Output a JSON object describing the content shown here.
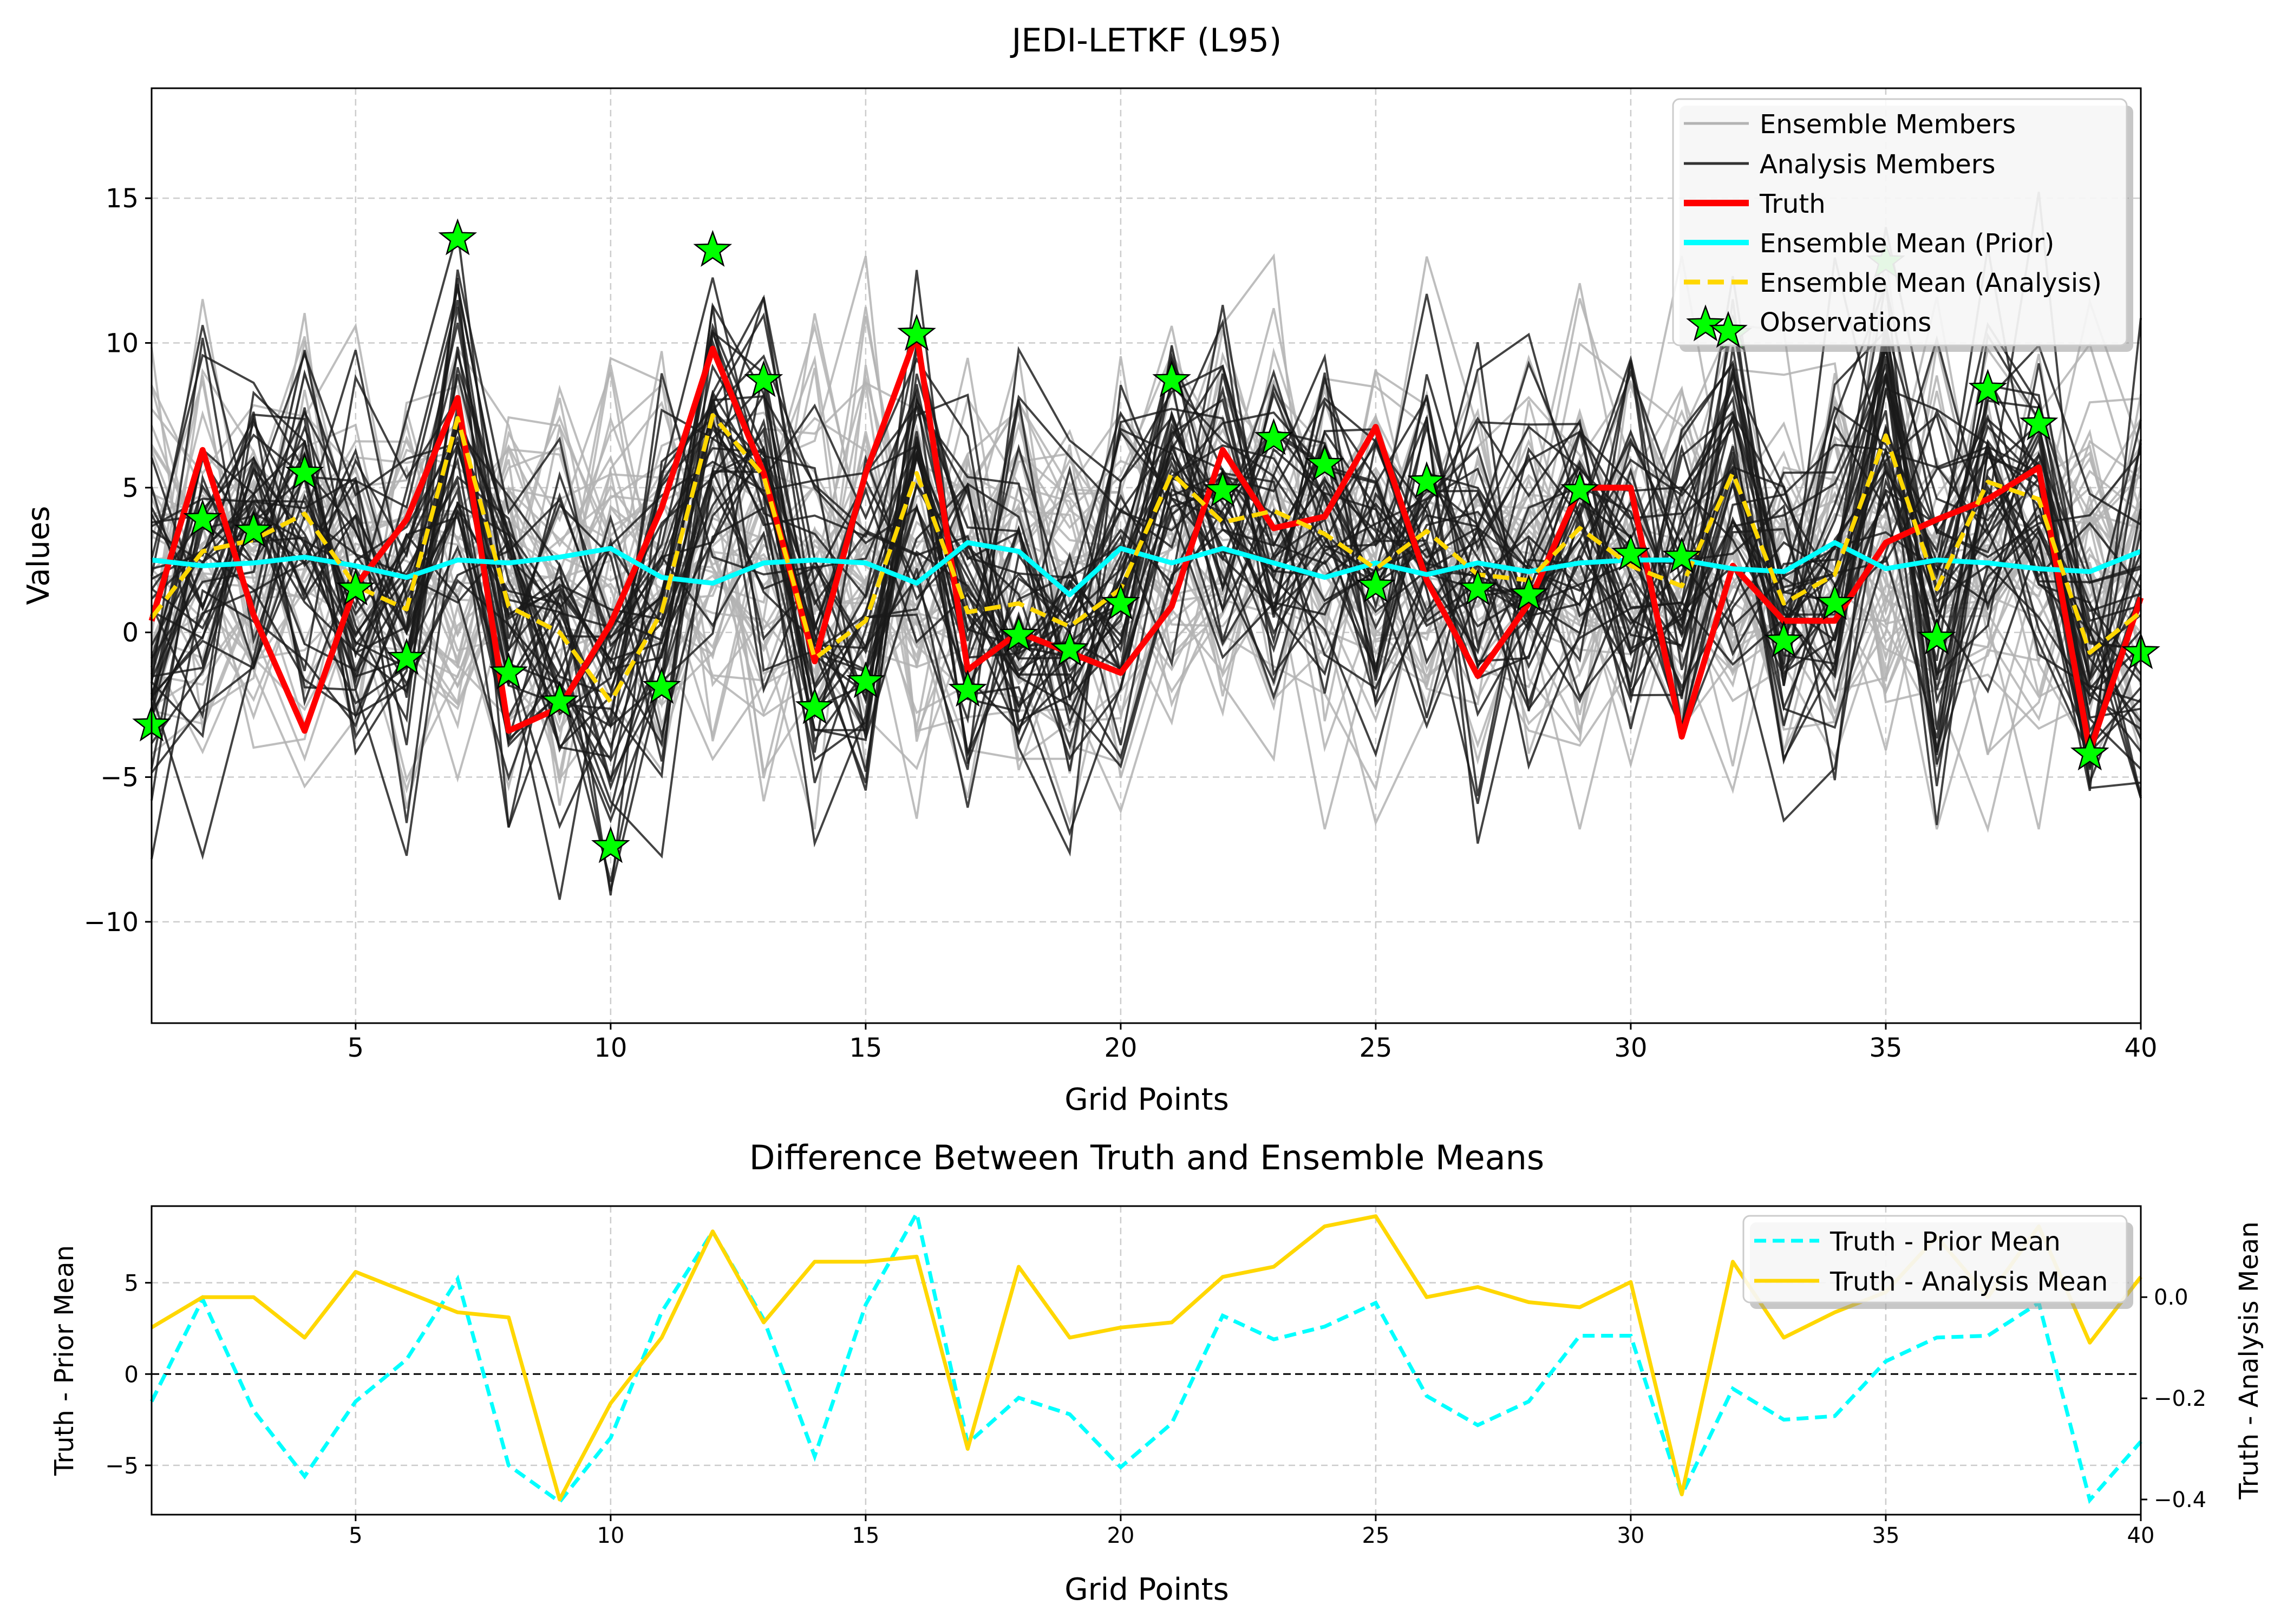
{
  "figure": {
    "title": "JEDI-LETKF (L95)",
    "colors": {
      "ensemble": "#b3b3b3",
      "analysis": "#1a1a1a",
      "truth": "#ff0000",
      "prior_mean": "#00ffff",
      "analysis_mean": "#ffd700",
      "observation": "#00ff00",
      "grid": "#cccccc"
    }
  },
  "chart_data": [
    {
      "type": "line",
      "title": "",
      "xlabel": "Grid Points",
      "ylabel": "Values",
      "xlim": [
        1,
        40
      ],
      "ylim": [
        -13.5,
        18.8
      ],
      "xticks": [
        5,
        10,
        15,
        20,
        25,
        30,
        35,
        40
      ],
      "yticks": [
        -10,
        -5,
        0,
        5,
        10,
        15
      ],
      "ytick_labels": [
        "−10",
        "−5",
        "0",
        "5",
        "10",
        "15"
      ],
      "grid": true,
      "legend_position": "top-right",
      "x": [
        1,
        2,
        3,
        4,
        5,
        6,
        7,
        8,
        9,
        10,
        11,
        12,
        13,
        14,
        15,
        16,
        17,
        18,
        19,
        20,
        21,
        22,
        23,
        24,
        25,
        26,
        27,
        28,
        29,
        30,
        31,
        32,
        33,
        34,
        35,
        36,
        37,
        38,
        39,
        40
      ],
      "series": [
        {
          "name": "Ensemble Members",
          "style": "ensemble",
          "values": null,
          "count": 40
        },
        {
          "name": "Analysis Members",
          "style": "analysis",
          "values": null,
          "count": 40
        },
        {
          "name": "Truth",
          "style": "truth",
          "values": [
            0.4,
            6.3,
            0.6,
            -3.4,
            1.6,
            3.9,
            8.1,
            -3.4,
            -2.6,
            0.3,
            4.3,
            9.8,
            5.5,
            -1.0,
            5.5,
            10.3,
            -1.3,
            0.0,
            -0.7,
            -1.4,
            0.9,
            6.3,
            3.6,
            4.0,
            7.1,
            1.8,
            -1.5,
            1.0,
            5.0,
            5.0,
            -3.6,
            2.3,
            0.4,
            0.4,
            3.1,
            3.9,
            4.6,
            5.7,
            -4.1,
            1.2
          ]
        },
        {
          "name": "Ensemble Mean (Prior)",
          "style": "prior_mean",
          "values": [
            2.5,
            2.3,
            2.4,
            2.6,
            2.3,
            1.9,
            2.5,
            2.4,
            2.6,
            2.9,
            1.9,
            1.7,
            2.4,
            2.5,
            2.4,
            1.7,
            3.1,
            2.8,
            1.3,
            2.9,
            2.4,
            2.9,
            2.4,
            1.9,
            2.4,
            2.0,
            2.4,
            2.1,
            2.4,
            2.5,
            2.5,
            2.2,
            2.1,
            3.1,
            2.2,
            2.5,
            2.4,
            2.2,
            2.1,
            2.8
          ]
        },
        {
          "name": "Ensemble Mean (Analysis)",
          "style": "analysis_mean",
          "values": [
            0.5,
            2.8,
            3.2,
            4.1,
            1.6,
            0.8,
            7.4,
            0.9,
            0.0,
            -2.4,
            0.7,
            7.5,
            5.4,
            -0.9,
            0.4,
            5.5,
            0.7,
            1.0,
            0.2,
            1.5,
            5.5,
            3.8,
            4.2,
            3.4,
            2.2,
            3.5,
            2.0,
            1.8,
            3.6,
            2.3,
            1.6,
            5.5,
            1.0,
            2.0,
            6.8,
            1.5,
            5.2,
            4.6,
            -0.7,
            0.7
          ]
        },
        {
          "name": "Observations",
          "style": "observation",
          "markers": "star",
          "x": [
            1,
            2,
            3,
            4,
            5,
            6,
            7,
            8,
            9,
            10,
            11,
            12,
            13,
            14,
            15,
            16,
            17,
            18,
            19,
            20,
            21,
            22,
            23,
            24,
            25,
            26,
            27,
            28,
            29,
            30,
            31,
            32,
            33,
            34,
            35,
            36,
            37,
            38,
            39,
            40
          ],
          "values": [
            -3.2,
            3.9,
            3.5,
            5.5,
            1.5,
            -0.9,
            13.6,
            -1.4,
            -2.4,
            -7.4,
            -1.9,
            13.2,
            8.7,
            -2.6,
            -1.7,
            10.3,
            -2.0,
            -0.1,
            -0.6,
            1.0,
            8.7,
            4.9,
            6.7,
            5.8,
            1.6,
            5.2,
            1.5,
            1.3,
            4.9,
            2.7,
            2.6,
            10.3,
            -0.3,
            1.0,
            12.8,
            -0.2,
            8.4,
            7.2,
            -4.2,
            -0.7
          ]
        }
      ]
    },
    {
      "type": "line",
      "title": "Difference Between Truth and Ensemble Means",
      "xlabel": "Grid Points",
      "ylabel": "Truth - Prior Mean",
      "ylabel_right": "Truth - Analysis Mean",
      "xlim": [
        1,
        40
      ],
      "ylim": [
        -7.7,
        9.2
      ],
      "ylim_right": [
        -0.43,
        0.18
      ],
      "xticks": [
        5,
        10,
        15,
        20,
        25,
        30,
        35,
        40
      ],
      "yticks": [
        -5,
        0,
        5
      ],
      "ytick_labels": [
        "−5",
        "0",
        "5"
      ],
      "yticks_right": [
        -0.4,
        -0.2,
        0.0
      ],
      "ytick_labels_right": [
        "−0.4",
        "−0.2",
        "0.0"
      ],
      "grid": true,
      "zero_line": true,
      "legend_position": "top-right",
      "x": [
        1,
        2,
        3,
        4,
        5,
        6,
        7,
        8,
        9,
        10,
        11,
        12,
        13,
        14,
        15,
        16,
        17,
        18,
        19,
        20,
        21,
        22,
        23,
        24,
        25,
        26,
        27,
        28,
        29,
        30,
        31,
        32,
        33,
        34,
        35,
        36,
        37,
        38,
        39,
        40
      ],
      "series": [
        {
          "name": "Truth - Prior Mean",
          "axis": "left",
          "style": "prior_mean",
          "dash": true,
          "values": [
            -1.5,
            4.1,
            -2.0,
            -5.6,
            -1.5,
            0.8,
            5.2,
            -5.0,
            -7.0,
            -3.5,
            3.4,
            7.8,
            3.0,
            -4.5,
            3.8,
            8.8,
            -3.8,
            -1.3,
            -2.2,
            -5.1,
            -2.7,
            3.2,
            1.9,
            2.6,
            3.9,
            -1.2,
            -2.8,
            -1.5,
            2.1,
            2.1,
            -6.6,
            -0.8,
            -2.5,
            -2.3,
            0.7,
            2.0,
            2.1,
            3.9,
            -6.9,
            -3.7
          ]
        },
        {
          "name": "Truth - Analysis Mean",
          "axis": "right",
          "style": "analysis_mean",
          "values": [
            -0.06,
            0.0,
            0.0,
            -0.08,
            0.05,
            0.01,
            -0.03,
            -0.04,
            -0.4,
            -0.21,
            -0.08,
            0.13,
            -0.05,
            0.07,
            0.07,
            0.08,
            -0.3,
            0.06,
            -0.08,
            -0.06,
            -0.05,
            0.04,
            0.06,
            0.14,
            0.16,
            0.0,
            0.02,
            -0.01,
            -0.02,
            0.03,
            -0.39,
            0.07,
            -0.08,
            -0.03,
            0.01,
            0.12,
            0.0,
            0.14,
            -0.09,
            0.04
          ]
        }
      ]
    }
  ]
}
